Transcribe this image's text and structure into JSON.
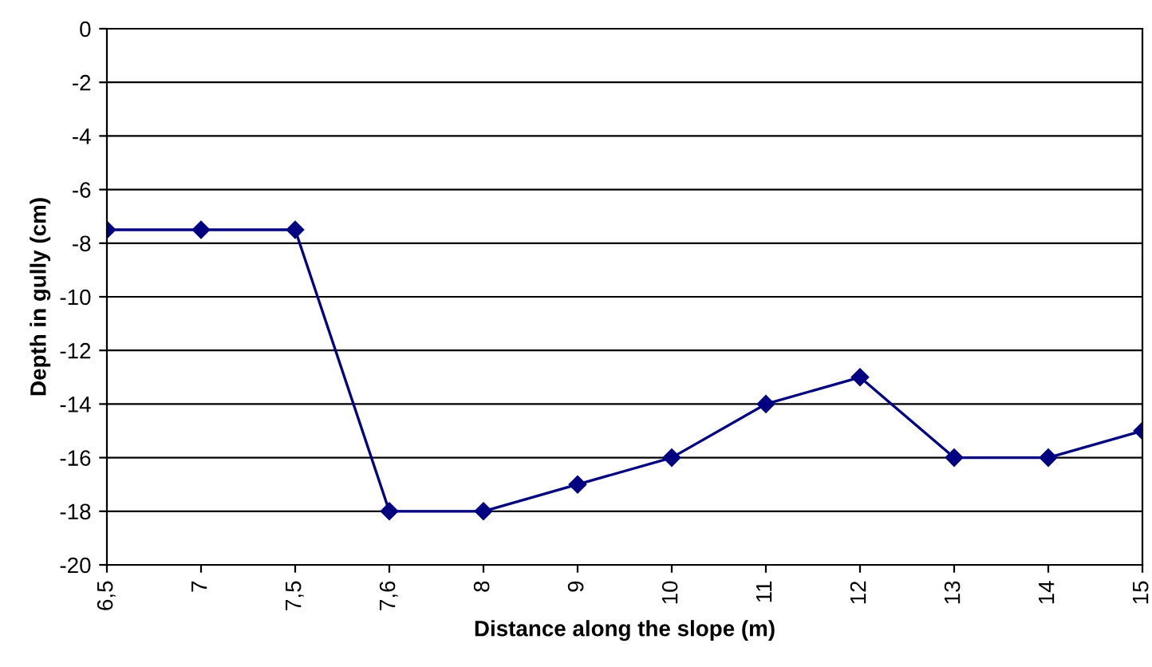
{
  "chart_data": {
    "type": "line",
    "xlabel": "Distance along the slope (m)",
    "ylabel": "Depth in gully (cm)",
    "categories": [
      "6,5",
      "7",
      "7,5",
      "7,6",
      "8",
      "9",
      "10",
      "11",
      "12",
      "13",
      "14",
      "15"
    ],
    "series": [
      {
        "color": "#000080",
        "values": [
          -7.5,
          -7.5,
          -7.5,
          -18,
          -18,
          -17,
          -16,
          -14,
          -13,
          -16,
          -16,
          -15
        ]
      }
    ],
    "ylim": [
      -20,
      0
    ],
    "yticks": [
      -20,
      -18,
      -16,
      -14,
      -12,
      -10,
      -8,
      -6,
      -4,
      -2,
      0
    ],
    "grid": "y",
    "marker": "diamond",
    "line_style": "solid",
    "legend": false
  }
}
